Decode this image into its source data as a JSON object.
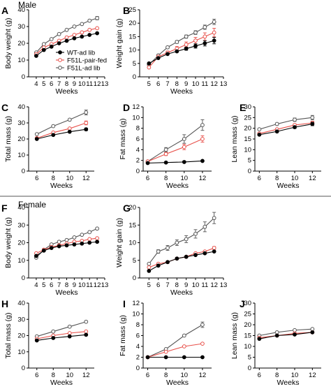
{
  "sections": {
    "top": "Male",
    "bottom": "Female"
  },
  "legend": [
    {
      "label": "WT-ad lib",
      "color": "#000000",
      "marker": "filled-circle"
    },
    {
      "label": "F51L-pair-fed",
      "color": "#e8504a",
      "marker": "open-circle"
    },
    {
      "label": "F51L-ad lib",
      "color": "#555555",
      "marker": "open-circle"
    }
  ],
  "colors": {
    "wt": "#000000",
    "pair": "#e8504a",
    "adlib": "#555555"
  },
  "chart_data": [
    {
      "id": "A",
      "type": "line",
      "xlabel": "Weeks",
      "ylabel": "Body weight (g)",
      "xlim": [
        3,
        13
      ],
      "ylim": [
        0,
        40
      ],
      "xticks": [
        4,
        5,
        6,
        7,
        8,
        9,
        10,
        11,
        12,
        13
      ],
      "yticks": [
        0,
        10,
        20,
        30,
        40
      ],
      "x": [
        4,
        5,
        6,
        7,
        8,
        9,
        10,
        11,
        12
      ],
      "series": [
        {
          "name": "WT-ad lib",
          "values": [
            12.5,
            16,
            18,
            20,
            21.5,
            23,
            24,
            25,
            26
          ]
        },
        {
          "name": "F51L-pair-fed",
          "values": [
            13.5,
            17.5,
            19.5,
            21.5,
            23.5,
            25,
            26.5,
            28,
            29
          ]
        },
        {
          "name": "F51L-ad lib",
          "values": [
            14.5,
            19.5,
            22.5,
            25.5,
            28,
            30,
            31.5,
            33.5,
            35
          ]
        }
      ]
    },
    {
      "id": "B",
      "type": "line",
      "xlabel": "Weeks",
      "ylabel": "Weight gain (g)",
      "xlim": [
        4,
        13
      ],
      "ylim": [
        0,
        25
      ],
      "xticks": [
        5,
        6,
        7,
        8,
        9,
        10,
        11,
        12,
        13
      ],
      "yticks": [
        0,
        5,
        10,
        15,
        20,
        25
      ],
      "x": [
        5,
        6,
        7,
        8,
        9,
        10,
        11,
        12
      ],
      "series": [
        {
          "name": "WT-ad lib",
          "values": [
            5,
            7,
            8.5,
            9.5,
            10.5,
            11.5,
            12.5,
            13.5
          ]
        },
        {
          "name": "F51L-pair-fed",
          "values": [
            3.5,
            7.5,
            9,
            10.5,
            12,
            13.5,
            15,
            16.5
          ]
        },
        {
          "name": "F51L-ad lib",
          "values": [
            4.5,
            8,
            11,
            13,
            15,
            16.5,
            18.5,
            20.5
          ]
        }
      ]
    },
    {
      "id": "C",
      "type": "line",
      "xlabel": "Weeks",
      "ylabel": "Total mass (g)",
      "xlim": [
        5,
        13
      ],
      "ylim": [
        0,
        40
      ],
      "xticks": [
        6,
        8,
        10,
        12
      ],
      "yticks": [
        0,
        10,
        20,
        30,
        40
      ],
      "x": [
        6,
        8,
        10,
        12
      ],
      "series": [
        {
          "name": "WT-ad lib",
          "values": [
            20,
            22.5,
            24.5,
            26
          ]
        },
        {
          "name": "F51L-pair-fed",
          "values": [
            20.5,
            24,
            26.5,
            30
          ]
        },
        {
          "name": "F51L-ad lib",
          "values": [
            23,
            28,
            32,
            36.5
          ]
        }
      ]
    },
    {
      "id": "D",
      "type": "line",
      "xlabel": "Weeks",
      "ylabel": "Fat mass (g)",
      "xlim": [
        5.5,
        13
      ],
      "ylim": [
        0,
        12
      ],
      "xticks": [
        6,
        8,
        10,
        12
      ],
      "yticks": [
        0,
        2,
        4,
        6,
        8,
        10,
        12
      ],
      "x": [
        6,
        8,
        10,
        12
      ],
      "series": [
        {
          "name": "WT-ad lib",
          "values": [
            1.5,
            1.6,
            1.7,
            1.9
          ]
        },
        {
          "name": "F51L-pair-fed",
          "values": [
            1.8,
            3.2,
            4.5,
            6
          ]
        },
        {
          "name": "F51L-ad lib",
          "values": [
            1.8,
            4,
            6,
            8.6
          ]
        }
      ]
    },
    {
      "id": "E",
      "type": "line",
      "xlabel": "Weeks",
      "ylabel": "Lean mass (g)",
      "xlim": [
        5.5,
        13
      ],
      "ylim": [
        0,
        30
      ],
      "xticks": [
        6,
        8,
        10,
        12
      ],
      "yticks": [
        0,
        5,
        10,
        15,
        20,
        25,
        30
      ],
      "x": [
        6,
        8,
        10,
        12
      ],
      "series": [
        {
          "name": "WT-ad lib",
          "values": [
            17,
            18.5,
            20.5,
            22
          ]
        },
        {
          "name": "F51L-pair-fed",
          "values": [
            17.5,
            19.5,
            21.5,
            22.5
          ]
        },
        {
          "name": "F51L-ad lib",
          "values": [
            19.5,
            22,
            24,
            25
          ]
        }
      ]
    },
    {
      "id": "F",
      "type": "line",
      "xlabel": "Weeks",
      "ylabel": "Body weight (g)",
      "xlim": [
        3,
        13
      ],
      "ylim": [
        0,
        40
      ],
      "xticks": [
        4,
        5,
        6,
        7,
        8,
        9,
        10,
        11,
        12,
        13
      ],
      "yticks": [
        0,
        10,
        20,
        30,
        40
      ],
      "x": [
        4,
        5,
        6,
        7,
        8,
        9,
        10,
        11,
        12
      ],
      "series": [
        {
          "name": "WT-ad lib",
          "values": [
            12.5,
            15.5,
            17,
            18,
            18.5,
            19,
            19.5,
            20,
            20.5
          ]
        },
        {
          "name": "F51L-pair-fed",
          "values": [
            14,
            16,
            17.5,
            18.5,
            19.5,
            20.5,
            21,
            22,
            22.5
          ]
        },
        {
          "name": "F51L-ad lib",
          "values": [
            11.5,
            16,
            19,
            20.5,
            21.5,
            23,
            24.5,
            26,
            28
          ]
        }
      ]
    },
    {
      "id": "G",
      "type": "line",
      "xlabel": "Weeks",
      "ylabel": "Weight gain (g)",
      "xlim": [
        4,
        13
      ],
      "ylim": [
        0,
        20
      ],
      "xticks": [
        5,
        6,
        7,
        8,
        9,
        10,
        11,
        12,
        13
      ],
      "yticks": [
        0,
        5,
        10,
        15,
        20
      ],
      "x": [
        5,
        6,
        7,
        8,
        9,
        10,
        11,
        12
      ],
      "series": [
        {
          "name": "WT-ad lib",
          "values": [
            2,
            3.5,
            4.5,
            5.5,
            6,
            6.5,
            7,
            7.5
          ]
        },
        {
          "name": "F51L-pair-fed",
          "values": [
            3,
            4,
            4.5,
            5.5,
            6,
            7,
            7.5,
            8.5
          ]
        },
        {
          "name": "F51L-ad lib",
          "values": [
            4,
            7.5,
            8.5,
            10,
            11,
            12.5,
            14.5,
            17
          ]
        }
      ]
    },
    {
      "id": "H",
      "type": "line",
      "xlabel": "Weeks",
      "ylabel": "Total mass (g)",
      "xlim": [
        5,
        13
      ],
      "ylim": [
        0,
        40
      ],
      "xticks": [
        6,
        8,
        10,
        12
      ],
      "yticks": [
        0,
        10,
        20,
        30,
        40
      ],
      "x": [
        6,
        8,
        10,
        12
      ],
      "series": [
        {
          "name": "WT-ad lib",
          "values": [
            17,
            18.5,
            19.5,
            20.5
          ]
        },
        {
          "name": "F51L-pair-fed",
          "values": [
            18,
            20,
            21.5,
            22.5
          ]
        },
        {
          "name": "F51L-ad lib",
          "values": [
            19.5,
            22.5,
            25.5,
            28.5
          ]
        }
      ]
    },
    {
      "id": "I",
      "type": "line",
      "xlabel": "Weeks",
      "ylabel": "Fat mass (g)",
      "xlim": [
        5.5,
        13
      ],
      "ylim": [
        0,
        12
      ],
      "xticks": [
        6,
        8,
        10,
        12
      ],
      "yticks": [
        0,
        2,
        4,
        6,
        8,
        10,
        12
      ],
      "x": [
        6,
        8,
        10,
        12
      ],
      "series": [
        {
          "name": "WT-ad lib",
          "values": [
            2,
            2,
            2,
            2
          ]
        },
        {
          "name": "F51L-pair-fed",
          "values": [
            2,
            3,
            4,
            4.5
          ]
        },
        {
          "name": "F51L-ad lib",
          "values": [
            2,
            3.5,
            6,
            8
          ]
        }
      ]
    },
    {
      "id": "J",
      "type": "line",
      "xlabel": "Weeks",
      "ylabel": "Lean mass (g)",
      "xlim": [
        5.5,
        13
      ],
      "ylim": [
        0,
        30
      ],
      "xticks": [
        6,
        8,
        10,
        12
      ],
      "yticks": [
        0,
        5,
        10,
        15,
        20,
        25,
        30
      ],
      "x": [
        6,
        8,
        10,
        12
      ],
      "series": [
        {
          "name": "WT-ad lib",
          "values": [
            13.5,
            15,
            15.5,
            16.5
          ]
        },
        {
          "name": "F51L-pair-fed",
          "values": [
            14,
            15,
            16,
            16.5
          ]
        },
        {
          "name": "F51L-ad lib",
          "values": [
            15,
            16.5,
            17.5,
            18
          ]
        }
      ]
    }
  ]
}
